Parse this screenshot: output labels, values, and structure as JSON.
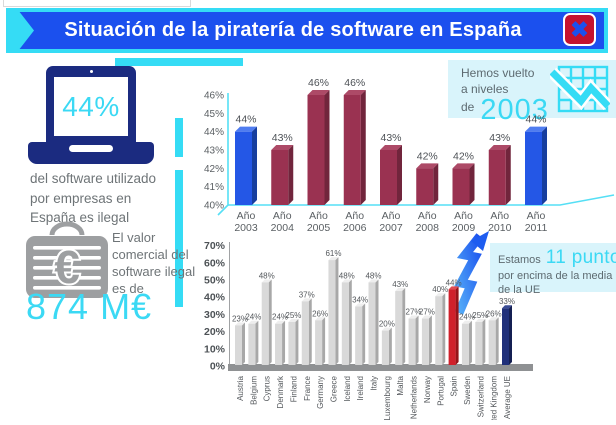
{
  "colors": {
    "accent_cyan": "#35dcf5",
    "title_blue": "#1b50ee",
    "navy": "#1b2b80",
    "close_red": "#c41230",
    "box_bg": "#d9f4fb",
    "text_gray": "#6e7477",
    "bar_maroon": "#9a3251",
    "bar_blue": "#2457e6",
    "bar_gray": "#d9d9d9",
    "bar_red": "#d0202b",
    "bar_navy": "#20307a"
  },
  "icons": {
    "close": "✖",
    "laptop": "laptop-icon",
    "briefcase_euro": "briefcase-euro-icon",
    "chart_down": "declining-chart-icon",
    "lightning": "lightning-bolt-icon"
  },
  "header": {
    "title": "Situación de la piratería de software en España"
  },
  "left_panel": {
    "laptop_value": "44%",
    "laptop_caption_lines": [
      "del software utilizado",
      "por empresas en",
      "España es ilegal"
    ],
    "value_caption_lines": [
      "El valor",
      "comercial del",
      "software ilegal",
      "es de"
    ],
    "value_amount": "874 M€"
  },
  "callout_top": {
    "line1": "Hemos vuelto",
    "line2": "a  niveles",
    "prefix": "de",
    "year": "2003"
  },
  "callout_bottom": {
    "prefix": "Estamos",
    "highlight": "11 puntos",
    "line2": "por encima de la media",
    "line3": "de la UE"
  },
  "chart_data": [
    {
      "type": "bar",
      "title": "",
      "categories": [
        "Año 2003",
        "Año 2004",
        "Año 2005",
        "Año 2006",
        "Año 2007",
        "Año 2008",
        "Año 2009",
        "Año 2010",
        "Año 2011"
      ],
      "values": [
        44,
        43,
        46,
        46,
        43,
        42,
        42,
        43,
        44
      ],
      "value_suffix": "%",
      "ylim": [
        40,
        46
      ],
      "ytick_step": 1,
      "ytick_suffix": "%",
      "bar_colors": [
        "blue",
        "maroon",
        "maroon",
        "maroon",
        "maroon",
        "maroon",
        "maroon",
        "maroon",
        "blue"
      ],
      "xlabel": "",
      "ylabel": "",
      "grid": false,
      "legend": false
    },
    {
      "type": "bar",
      "title": "",
      "categories": [
        "Austria",
        "Belgium",
        "Cyprus",
        "Denmark",
        "Finland",
        "France",
        "Germany",
        "Greece",
        "Iceland",
        "Ireland",
        "Italy",
        "Luxembourg",
        "Malta",
        "Netherlands",
        "Norway",
        "Portugal",
        "Spain",
        "Sweden",
        "Switzerland",
        "United Kingdom",
        "Average UE"
      ],
      "values": [
        23,
        24,
        48,
        24,
        25,
        37,
        26,
        61,
        48,
        34,
        48,
        20,
        43,
        27,
        27,
        40,
        44,
        24,
        25,
        26,
        33
      ],
      "value_suffix": "%",
      "ylim": [
        0,
        70
      ],
      "ytick_step": 10,
      "ytick_suffix": "%",
      "bar_colors": [
        "gray",
        "gray",
        "gray",
        "gray",
        "gray",
        "gray",
        "gray",
        "gray",
        "gray",
        "gray",
        "gray",
        "gray",
        "gray",
        "gray",
        "gray",
        "gray",
        "red",
        "gray",
        "gray",
        "gray",
        "navy"
      ],
      "xlabel": "",
      "ylabel": "",
      "grid": false,
      "legend": false
    }
  ]
}
